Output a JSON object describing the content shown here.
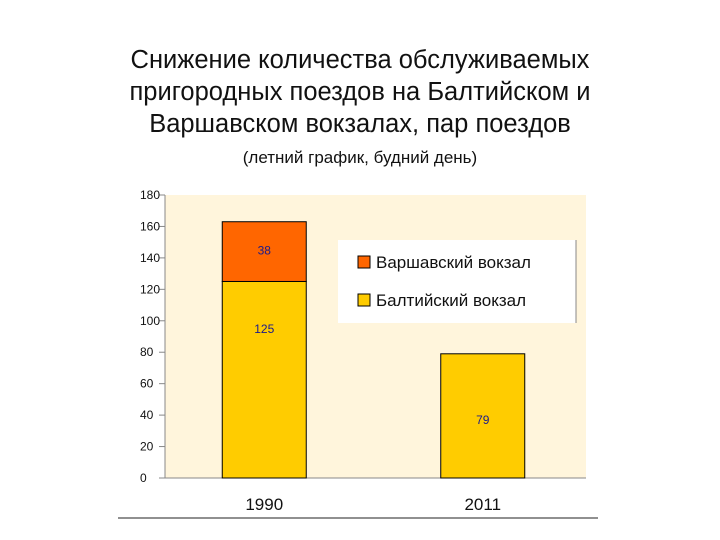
{
  "chart_data": {
    "type": "bar",
    "stacked": true,
    "title": "Снижение количества обслуживаемых пригородных поездов на Балтийском и Варшавском вокзалах, пар поездов",
    "title_lines": [
      "Снижение количества обслуживаемых",
      "пригородных поездов на Балтийском и",
      "Варшавском вокзалах, пар поездов"
    ],
    "subtitle": "(летний график, будний день)",
    "categories": [
      "1990",
      "2011"
    ],
    "series": [
      {
        "name": "Балтийский вокзал",
        "values": [
          125,
          79
        ],
        "labels": [
          "125",
          "79"
        ],
        "color": "#ffcc00"
      },
      {
        "name": "Варшавский вокзал",
        "values": [
          38,
          0
        ],
        "labels": [
          "38",
          ""
        ],
        "color": "#ff6600"
      }
    ],
    "ylim": [
      0,
      180
    ],
    "yticks": [
      0,
      20,
      40,
      60,
      80,
      100,
      120,
      140,
      160,
      180
    ],
    "ytick_labels": [
      "0",
      "20",
      "40",
      "60",
      "80",
      "100",
      "120",
      "140",
      "160",
      "180"
    ],
    "grid": false,
    "legend_position": "right",
    "plot_background": "#fff5dc"
  }
}
